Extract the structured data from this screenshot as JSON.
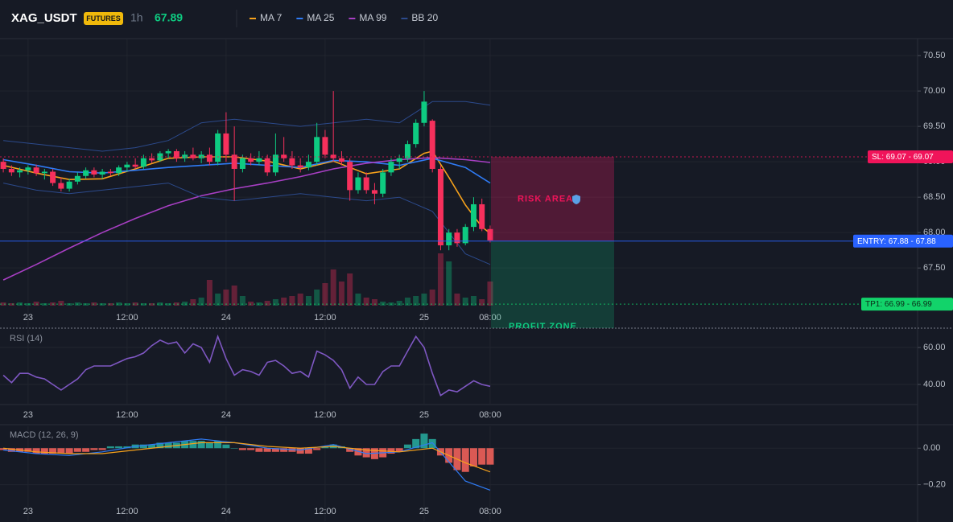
{
  "header": {
    "symbol": "XAG_USDT",
    "badge": "FUTURES",
    "interval": "1h",
    "price": 67.89
  },
  "chart_data": [
    {
      "type": "candlestick",
      "xlim": [
        -0.4,
        110.8
      ],
      "xticks": [
        {
          "value": 3,
          "label": "23"
        },
        {
          "value": 15,
          "label": "12:00"
        },
        {
          "value": 27,
          "label": "24"
        },
        {
          "value": 39,
          "label": "12:00"
        },
        {
          "value": 51,
          "label": "25"
        },
        {
          "value": 59,
          "label": "08:00"
        }
      ],
      "ylim": [
        66.65,
        70.74
      ],
      "yticks": [
        {
          "value": 70.5,
          "label": "70.50"
        },
        {
          "value": 70,
          "label": "70.00"
        },
        {
          "value": 69.5,
          "label": "69.50"
        },
        {
          "value": 69,
          "label": "69.00"
        },
        {
          "value": 68.5,
          "label": "68.50"
        },
        {
          "value": 68,
          "label": "68.00"
        },
        {
          "value": 67.5,
          "label": "67.50"
        }
      ],
      "grid": true,
      "up_color": "#0ecb81",
      "down_color": "#f6305c",
      "open": [
        69.0,
        68.9,
        68.85,
        68.88,
        68.92,
        68.84,
        68.86,
        68.7,
        68.62,
        68.72,
        68.8,
        68.88,
        68.82,
        68.86,
        68.84,
        68.92,
        68.96,
        68.93,
        69.05,
        69.02,
        69.12,
        69.15,
        69.05,
        69.1,
        69.05,
        69.1,
        69.0,
        69.4,
        69.1,
        68.9,
        69.05,
        69.0,
        69.05,
        68.85,
        69.1,
        69.05,
        68.95,
        68.92,
        69.0,
        69.35,
        69.1,
        69.05,
        69.0,
        68.6,
        68.78,
        68.6,
        68.55,
        68.85,
        69.0,
        69.05,
        69.25,
        69.55,
        69.58,
        68.9,
        67.82,
        68.0,
        67.85,
        68.08,
        68.4,
        68.05
      ],
      "high": [
        69.05,
        68.95,
        68.92,
        68.95,
        68.96,
        68.9,
        68.9,
        68.78,
        68.76,
        68.85,
        68.92,
        68.92,
        68.9,
        68.9,
        68.95,
        69.0,
        69.05,
        69.1,
        69.12,
        69.15,
        69.18,
        69.18,
        69.15,
        69.2,
        69.15,
        69.2,
        69.45,
        69.7,
        69.5,
        69.1,
        69.12,
        69.15,
        69.1,
        69.4,
        69.35,
        69.15,
        69.05,
        69.1,
        69.55,
        69.45,
        70.0,
        69.15,
        69.05,
        68.85,
        68.85,
        68.7,
        68.9,
        69.05,
        69.1,
        69.3,
        69.6,
        70.0,
        69.6,
        68.95,
        68.05,
        68.05,
        68.12,
        68.5,
        68.48,
        68.1
      ],
      "low": [
        68.85,
        68.8,
        68.78,
        68.82,
        68.8,
        68.75,
        68.66,
        68.58,
        68.58,
        68.68,
        68.76,
        68.78,
        68.76,
        68.8,
        68.8,
        68.86,
        68.9,
        68.9,
        68.98,
        69.0,
        69.05,
        69.0,
        69.0,
        69.02,
        68.98,
        68.95,
        68.95,
        69.0,
        68.45,
        68.85,
        68.95,
        68.95,
        68.8,
        68.8,
        69.0,
        68.9,
        68.85,
        68.88,
        68.95,
        69.05,
        69.0,
        68.95,
        68.45,
        68.55,
        68.55,
        68.4,
        68.5,
        68.8,
        68.9,
        69.0,
        69.2,
        69.5,
        68.85,
        67.75,
        67.75,
        67.8,
        67.82,
        68.02,
        68.02,
        67.86
      ],
      "close": [
        68.9,
        68.85,
        68.88,
        68.92,
        68.84,
        68.86,
        68.7,
        68.62,
        68.72,
        68.8,
        68.88,
        68.82,
        68.86,
        68.84,
        68.92,
        68.96,
        68.93,
        69.05,
        69.02,
        69.12,
        69.15,
        69.05,
        69.1,
        69.05,
        69.1,
        69.0,
        69.4,
        69.1,
        68.9,
        69.05,
        69.0,
        69.05,
        68.85,
        69.1,
        69.05,
        68.95,
        68.92,
        69.0,
        69.35,
        69.1,
        69.05,
        69.0,
        68.6,
        68.78,
        68.6,
        68.55,
        68.85,
        69.0,
        69.05,
        69.25,
        69.55,
        69.85,
        68.9,
        67.82,
        68.0,
        67.85,
        68.08,
        68.4,
        68.05,
        67.89
      ],
      "volume": [
        4,
        3,
        4,
        3,
        5,
        3,
        4,
        6,
        3,
        4,
        3,
        4,
        3,
        3,
        4,
        3,
        4,
        3,
        3,
        4,
        3,
        4,
        5,
        8,
        10,
        32,
        15,
        20,
        25,
        12,
        5,
        4,
        6,
        8,
        10,
        12,
        15,
        12,
        20,
        28,
        45,
        30,
        40,
        15,
        10,
        8,
        5,
        4,
        6,
        10,
        12,
        15,
        20,
        65,
        55,
        15,
        10,
        12,
        8,
        30
      ],
      "series": [
        {
          "name": "MA 7",
          "color": "#f7a21b",
          "x": [
            0,
            4,
            8,
            12,
            16,
            20,
            24,
            28,
            32,
            36,
            40,
            44,
            48,
            51,
            52,
            54,
            56,
            58,
            59
          ],
          "values": [
            68.95,
            68.84,
            68.75,
            68.76,
            68.9,
            69.05,
            69.07,
            69.07,
            69.01,
            68.9,
            69.01,
            68.83,
            68.9,
            69.12,
            69.15,
            68.78,
            68.39,
            68.08,
            67.99
          ]
        },
        {
          "name": "MA 25",
          "color": "#2f7bf5",
          "x": [
            0,
            4,
            8,
            12,
            16,
            20,
            24,
            28,
            32,
            36,
            40,
            44,
            48,
            52,
            56,
            59
          ],
          "values": [
            69.03,
            68.95,
            68.86,
            68.84,
            68.88,
            68.92,
            68.95,
            68.98,
            68.95,
            68.92,
            69.02,
            69.0,
            68.95,
            69.05,
            68.92,
            68.7
          ]
        },
        {
          "name": "MA 99",
          "color": "#a83fc4",
          "x": [
            0,
            4,
            8,
            12,
            16,
            20,
            24,
            28,
            32,
            36,
            40,
            44,
            48,
            52,
            56,
            59
          ],
          "values": [
            67.33,
            67.55,
            67.78,
            68.0,
            68.2,
            68.38,
            68.52,
            68.62,
            68.7,
            68.79,
            68.9,
            68.98,
            69.03,
            69.06,
            69.03,
            68.99
          ]
        },
        {
          "name": "BB 20",
          "color": "#2c4a8c",
          "x": [
            0,
            4,
            8,
            12,
            16,
            20,
            24,
            28,
            32,
            36,
            40,
            44,
            48,
            52,
            56,
            59
          ],
          "values": [
            69.3,
            69.25,
            69.2,
            69.15,
            69.2,
            69.3,
            69.55,
            69.6,
            69.55,
            69.5,
            69.55,
            69.6,
            69.55,
            69.85,
            69.85,
            69.8
          ],
          "lower": [
            68.7,
            68.6,
            68.55,
            68.6,
            68.65,
            68.7,
            68.5,
            68.45,
            68.5,
            68.55,
            68.5,
            68.45,
            68.5,
            68.3,
            67.7,
            67.55
          ]
        }
      ],
      "levels": [
        {
          "label": "SL: 69.07 - 69.07",
          "value": 69.07,
          "color": "#f0145a"
        },
        {
          "label": "ENTRY: 67.88 - 67.88",
          "value": 67.88,
          "color": "#2962ff"
        },
        {
          "label": "TP1: 66.99 - 66.99",
          "value": 66.99,
          "color": "#12d36a"
        }
      ],
      "zones": [
        "RISK AREA",
        "PROFIT ZONE"
      ]
    },
    {
      "type": "line",
      "title": "RSI (14)",
      "color": "#7e57c2",
      "ylim": [
        29.1,
        69.6
      ],
      "yticks": [
        {
          "value": 60,
          "label": "60.00"
        },
        {
          "value": 40,
          "label": "40.00"
        }
      ],
      "values": [
        45,
        41,
        46,
        46,
        44,
        43,
        40,
        37,
        40,
        43,
        48,
        50,
        50,
        50,
        52,
        54,
        55,
        57,
        61,
        64,
        62,
        63,
        57,
        62,
        60,
        52,
        66,
        54,
        45,
        48,
        47,
        45,
        52,
        53,
        50,
        46,
        47,
        44,
        58,
        56,
        53,
        48,
        38,
        44,
        40,
        40,
        47,
        50,
        50,
        58,
        66,
        60,
        46,
        34,
        37,
        36,
        39,
        42,
        40,
        39
      ]
    },
    {
      "type": "bar",
      "title": "MACD (12, 26, 9)",
      "up_color": "#26a69a",
      "down_color": "#f0605a",
      "ylim": [
        -0.4,
        0.12
      ],
      "yticks": [
        {
          "value": 0,
          "label": "0.00"
        },
        {
          "value": -0.2,
          "label": "−0.20"
        }
      ],
      "values": [
        -0.01,
        -0.02,
        -0.02,
        -0.02,
        -0.03,
        -0.03,
        -0.03,
        -0.03,
        -0.03,
        -0.02,
        -0.02,
        -0.01,
        -0.01,
        0.01,
        0.01,
        0.01,
        0.02,
        0.02,
        0.02,
        0.03,
        0.03,
        0.03,
        0.04,
        0.04,
        0.04,
        0.03,
        0.04,
        0.02,
        0.0,
        -0.01,
        -0.01,
        -0.02,
        -0.02,
        -0.02,
        -0.02,
        -0.02,
        -0.03,
        -0.03,
        -0.01,
        0.01,
        0.02,
        0.01,
        -0.02,
        -0.04,
        -0.05,
        -0.06,
        -0.05,
        -0.03,
        -0.02,
        0.02,
        0.05,
        0.08,
        0.05,
        -0.04,
        -0.08,
        -0.12,
        -0.13,
        -0.1,
        -0.09,
        -0.09
      ],
      "series": [
        {
          "color": "#2f7bf5",
          "x": [
            0,
            4,
            8,
            12,
            16,
            20,
            24,
            28,
            32,
            36,
            40,
            44,
            48,
            52,
            56,
            59
          ],
          "values": [
            -0.01,
            -0.03,
            -0.04,
            -0.02,
            0.01,
            0.03,
            0.05,
            0.03,
            0.0,
            -0.01,
            0.02,
            -0.03,
            -0.02,
            0.03,
            -0.18,
            -0.23
          ]
        },
        {
          "color": "#f7a21b",
          "x": [
            0,
            4,
            8,
            12,
            16,
            20,
            24,
            28,
            32,
            36,
            40,
            44,
            48,
            52,
            56,
            59
          ],
          "values": [
            0.0,
            -0.02,
            -0.03,
            -0.03,
            -0.01,
            0.01,
            0.03,
            0.03,
            0.01,
            0.0,
            0.01,
            -0.01,
            -0.02,
            0.0,
            -0.08,
            -0.13
          ]
        }
      ]
    }
  ]
}
